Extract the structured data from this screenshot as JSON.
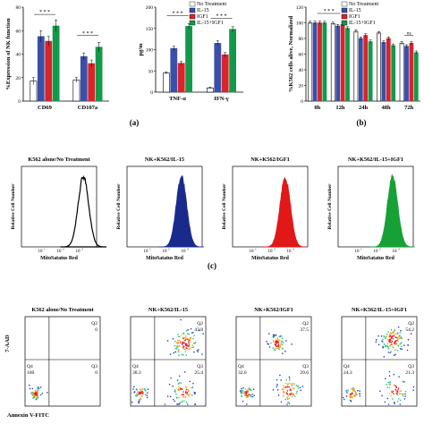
{
  "colors": {
    "no_treatment": "#ffffff",
    "il15": "#3b4fa8",
    "igf1": "#d8242a",
    "combo": "#129a4a",
    "flow_blue": "#1a2a8c",
    "flow_red": "#e01818",
    "flow_green": "#16a035"
  },
  "panel_labels": {
    "a": "(a)",
    "b": "(b)",
    "c": "(c)"
  },
  "chart_data": [
    {
      "id": "a1",
      "type": "bar",
      "ylabel": "%Expression of NK function",
      "categories": [
        "CD69",
        "CD107a"
      ],
      "ylim": [
        0,
        80
      ],
      "yticks": [
        0,
        20,
        40,
        60,
        80
      ],
      "series": [
        {
          "name": "No Treatment",
          "values": [
            17,
            18
          ],
          "errors": [
            3,
            2
          ]
        },
        {
          "name": "IL-15",
          "values": [
            55,
            38
          ],
          "errors": [
            5,
            3
          ]
        },
        {
          "name": "IGF1",
          "values": [
            51,
            32
          ],
          "errors": [
            4,
            3
          ]
        },
        {
          "name": "IL-15+IGF1",
          "values": [
            64,
            46
          ],
          "errors": [
            5,
            4
          ]
        }
      ],
      "annotations": [
        "* * *",
        "* * *"
      ]
    },
    {
      "id": "a2",
      "type": "bar",
      "ylabel": "pg/m",
      "categories": [
        "TNF-α",
        "IFN-γ"
      ],
      "ylim": [
        0,
        200
      ],
      "yticks": [
        0,
        50,
        100,
        150,
        200
      ],
      "series": [
        {
          "name": "No Treatment",
          "values": [
            45,
            10
          ],
          "errors": [
            3,
            2
          ]
        },
        {
          "name": "IL-15",
          "values": [
            103,
            115
          ],
          "errors": [
            5,
            6
          ]
        },
        {
          "name": "IGF1",
          "values": [
            68,
            88
          ],
          "errors": [
            4,
            5
          ]
        },
        {
          "name": "IL-15+IGF1",
          "values": [
            155,
            148
          ],
          "errors": [
            6,
            6
          ]
        }
      ],
      "legend": [
        "No Treatment",
        "IL-15",
        "IGF1",
        "IL-15+IGF1"
      ],
      "annotations": [
        "* * *",
        "* * *"
      ]
    },
    {
      "id": "b",
      "type": "bar",
      "ylabel": "%K562 cells alive, Normalized",
      "categories": [
        "0h",
        "12h",
        "24h",
        "48h",
        "72h"
      ],
      "ylim": [
        0,
        120
      ],
      "yticks": [
        0,
        20,
        40,
        60,
        80,
        100,
        120
      ],
      "series": [
        {
          "name": "No Treatment",
          "values": [
            100,
            99,
            89,
            87,
            74
          ],
          "errors": [
            2,
            2,
            2,
            2,
            2
          ]
        },
        {
          "name": "IL-15",
          "values": [
            100,
            96,
            80,
            75,
            70
          ],
          "errors": [
            2,
            2,
            2,
            2,
            2
          ]
        },
        {
          "name": "IGF1",
          "values": [
            100,
            98,
            84,
            80,
            74
          ],
          "errors": [
            2,
            2,
            2,
            2,
            2
          ]
        },
        {
          "name": "IL-15+IGF1",
          "values": [
            100,
            93,
            76,
            71,
            62
          ],
          "errors": [
            2,
            2,
            2,
            2,
            2
          ]
        }
      ],
      "legend": [
        "No Treatment",
        "IL-15",
        "IGF1",
        "IL-15+IGF1"
      ],
      "annotations": [
        "* * *",
        "ns"
      ]
    }
  ],
  "histograms": {
    "ylabel": "Relative Cell Number",
    "xlabel": "MitoSatatus Red",
    "ticks": [
      "10",
      "10",
      "10"
    ],
    "panels": [
      {
        "title": "K562 alone/No Treatment",
        "peak_decade": 3.3,
        "style": "outline"
      },
      {
        "title": "NK+K562/IL-15",
        "peak_decade": 2.9,
        "style": "blue"
      },
      {
        "title": "NK+K562/IGF1",
        "peak_decade": 2.8,
        "style": "red"
      },
      {
        "title": "NK+K562/IL-15+IGF1",
        "peak_decade": 2.9,
        "style": "green"
      }
    ]
  },
  "flow": {
    "ylabel": "7-AAD",
    "xlabel": "Annexin V-FITC",
    "panels": [
      {
        "title": "K562 alone/No Treatment",
        "q1": "",
        "q2": "Q2",
        "q2v": "0",
        "q3": "Q3",
        "q3v": "0",
        "q4": "Q4",
        "q4v": "100"
      },
      {
        "title": "NK+K562/IL-15",
        "q1": "",
        "q2": "Q2",
        "q2v": "43.8",
        "q3": "Q3",
        "q3v": "25.4",
        "q4": "Q4",
        "q4v": "30.3"
      },
      {
        "title": "NK+K562/IGF1",
        "q1": "",
        "q2": "Q2",
        "q2v": "37.5",
        "q3": "Q3",
        "q3v": "29.6",
        "q4": "Q4",
        "q4v": "32.6"
      },
      {
        "title": "NK+K562/IL-15+IGF1",
        "q1": "",
        "q2": "Q2",
        "q2v": "54.2",
        "q3": "Q3",
        "q3v": "21.3",
        "q4": "Q4",
        "q4v": "24.3"
      }
    ]
  }
}
